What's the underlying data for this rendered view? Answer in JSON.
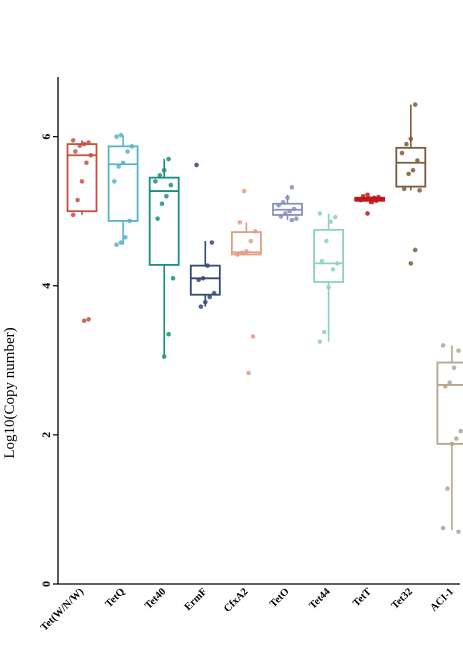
{
  "chart_data": {
    "type": "box",
    "title": "",
    "xlabel": "",
    "ylabel": "Log10(Copy number)",
    "ylim": [
      0,
      6.8
    ],
    "yticks": [
      0,
      2,
      4,
      6
    ],
    "grid": false,
    "legend": "none",
    "categories": [
      "Tet(W/N/W)",
      "TetQ",
      "Tet40",
      "ErmF",
      "CfxA2",
      "TetO",
      "Tet44",
      "TetT",
      "Tet32",
      "ACI-1"
    ],
    "series": [
      {
        "category": "Tet(W/N/W)",
        "color": "#c0533f",
        "q1": 5.0,
        "median": 5.75,
        "q3": 5.9,
        "whisker_low": 4.95,
        "whisker_high": 5.95,
        "points": [
          5.95,
          5.92,
          5.9,
          5.88,
          5.8,
          5.75,
          5.65,
          5.4,
          5.15,
          4.95,
          3.55,
          3.53
        ]
      },
      {
        "category": "TetQ",
        "color": "#55b4cb",
        "q1": 4.87,
        "median": 5.63,
        "q3": 5.87,
        "whisker_low": 4.55,
        "whisker_high": 6.02,
        "points": [
          6.02,
          6.0,
          5.87,
          5.8,
          5.65,
          5.6,
          5.4,
          4.87,
          4.65,
          4.58,
          4.55
        ]
      },
      {
        "category": "Tet40",
        "color": "#1a8f7e",
        "q1": 4.28,
        "median": 5.27,
        "q3": 5.45,
        "whisker_low": 3.05,
        "whisker_high": 5.7,
        "points": [
          5.7,
          5.55,
          5.48,
          5.4,
          5.35,
          5.2,
          5.1,
          4.9,
          4.1,
          3.35,
          3.05
        ]
      },
      {
        "category": "ErmF",
        "color": "#344a73",
        "q1": 3.88,
        "median": 4.1,
        "q3": 4.27,
        "whisker_low": 3.72,
        "whisker_high": 4.6,
        "points": [
          5.62,
          4.58,
          4.27,
          4.1,
          4.08,
          3.9,
          3.85,
          3.78,
          3.72
        ]
      },
      {
        "category": "CfxA2",
        "color": "#e59c84",
        "q1": 4.42,
        "median": 4.45,
        "q3": 4.72,
        "whisker_low": 4.42,
        "whisker_high": 4.85,
        "points": [
          5.27,
          4.85,
          4.73,
          4.6,
          4.46,
          4.44,
          4.42,
          3.32,
          2.83
        ]
      },
      {
        "category": "TetO",
        "color": "#8a8fb8",
        "q1": 4.95,
        "median": 5.02,
        "q3": 5.1,
        "whisker_low": 4.88,
        "whisker_high": 5.22,
        "points": [
          5.32,
          5.18,
          5.12,
          5.08,
          5.03,
          5.0,
          4.97,
          4.93,
          4.9,
          4.88
        ]
      },
      {
        "category": "Tet44",
        "color": "#8fd0c0",
        "q1": 4.05,
        "median": 4.3,
        "q3": 4.75,
        "whisker_low": 3.25,
        "whisker_high": 4.97,
        "points": [
          4.97,
          4.92,
          4.86,
          4.6,
          4.33,
          4.3,
          4.22,
          3.98,
          3.38,
          3.25
        ]
      },
      {
        "category": "TetT",
        "color": "#c0161a",
        "q1": 5.14,
        "median": 5.16,
        "q3": 5.18,
        "whisker_low": 5.1,
        "whisker_high": 5.2,
        "points": [
          5.22,
          5.2,
          5.19,
          5.18,
          5.17,
          5.16,
          5.15,
          5.14,
          5.12,
          4.97
        ]
      },
      {
        "category": "Tet32",
        "color": "#7a5b3c",
        "q1": 5.33,
        "median": 5.65,
        "q3": 5.85,
        "whisker_low": 5.28,
        "whisker_high": 6.43,
        "points": [
          6.43,
          5.97,
          5.9,
          5.78,
          5.68,
          5.55,
          5.5,
          5.3,
          5.28,
          4.48,
          4.3
        ]
      },
      {
        "category": "ACI-1",
        "color": "#b5a591",
        "q1": 1.88,
        "median": 2.67,
        "q3": 2.97,
        "whisker_low": 0.72,
        "whisker_high": 3.2,
        "points": [
          3.2,
          3.13,
          2.9,
          2.7,
          2.65,
          2.05,
          1.95,
          1.88,
          1.28,
          0.75,
          0.7
        ]
      }
    ]
  }
}
